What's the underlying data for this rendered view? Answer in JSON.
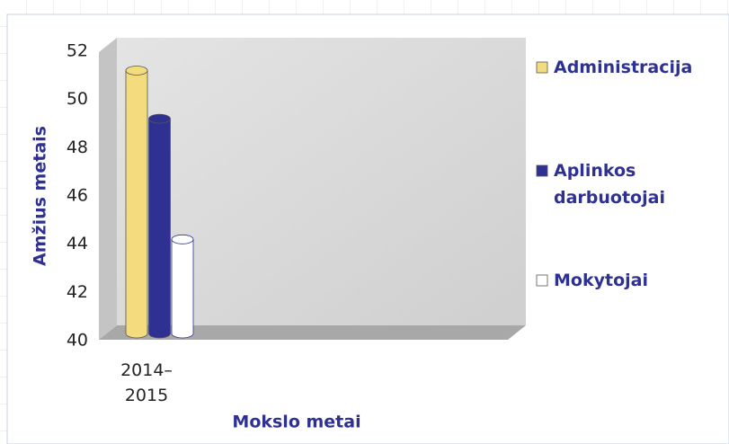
{
  "chart_data": {
    "type": "bar3d",
    "categories": [
      "2014–2015"
    ],
    "series": [
      {
        "name": "Administracija",
        "color": "#f2dc7e",
        "values": [
          51.2
        ]
      },
      {
        "name": "Aplinkos darbuotojai",
        "color": "#2e3192",
        "values": [
          49.2
        ]
      },
      {
        "name": "Mokytojai",
        "color": "#ffffff",
        "values": [
          44.2
        ]
      }
    ],
    "ylim": [
      40,
      52
    ],
    "yticks": [
      40,
      42,
      44,
      46,
      48,
      50,
      52
    ],
    "ylabel": "Amžius metais",
    "xlabel": "Mokslo metai",
    "legend": "right"
  }
}
